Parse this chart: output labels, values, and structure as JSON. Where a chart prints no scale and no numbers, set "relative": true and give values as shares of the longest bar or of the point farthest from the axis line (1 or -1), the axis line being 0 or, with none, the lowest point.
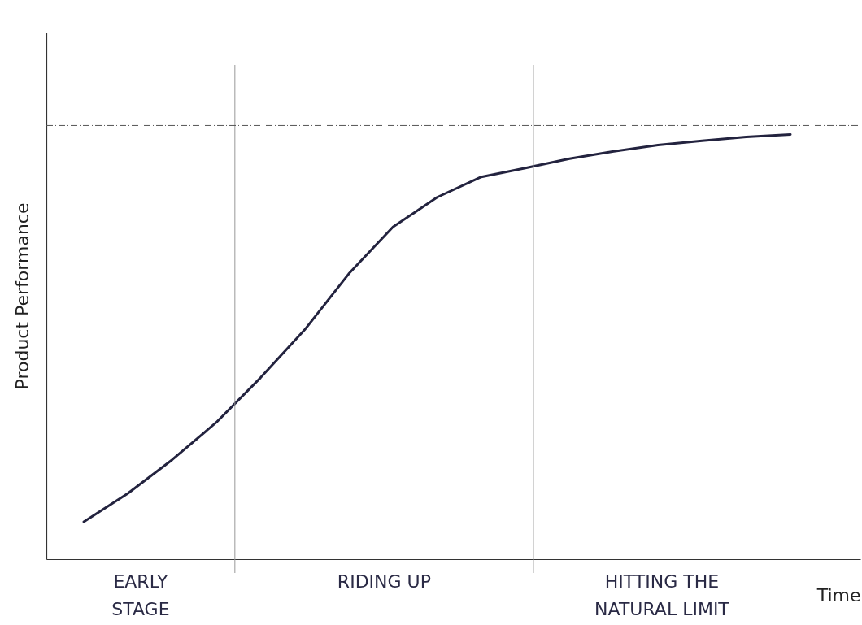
{
  "chart_data": {
    "type": "line",
    "relative": true,
    "xlabel": "Time",
    "ylabel": "Product Performance",
    "marker": "none",
    "categories": [
      null,
      null,
      null,
      null,
      null,
      null,
      null,
      null,
      null,
      null,
      null,
      null,
      null,
      null,
      null,
      null,
      null
    ],
    "series": [
      {
        "color": "#23233f",
        "values": [
          0.088,
          0.155,
          0.234,
          0.322,
          0.427,
          0.54,
          0.672,
          0.782,
          0.852,
          0.9,
          0.921,
          0.943,
          0.96,
          0.975,
          0.985,
          0.994,
          1
        ]
      }
    ],
    "ref_lines": [
      {
        "axis": "y",
        "value": 1.021,
        "color": "#555555",
        "line_style": "dashed"
      }
    ],
    "annotations": [
      "EARLY\nSTAGE",
      "RIDING UP",
      "HITTING THE\nNATURAL LIMIT"
    ]
  }
}
